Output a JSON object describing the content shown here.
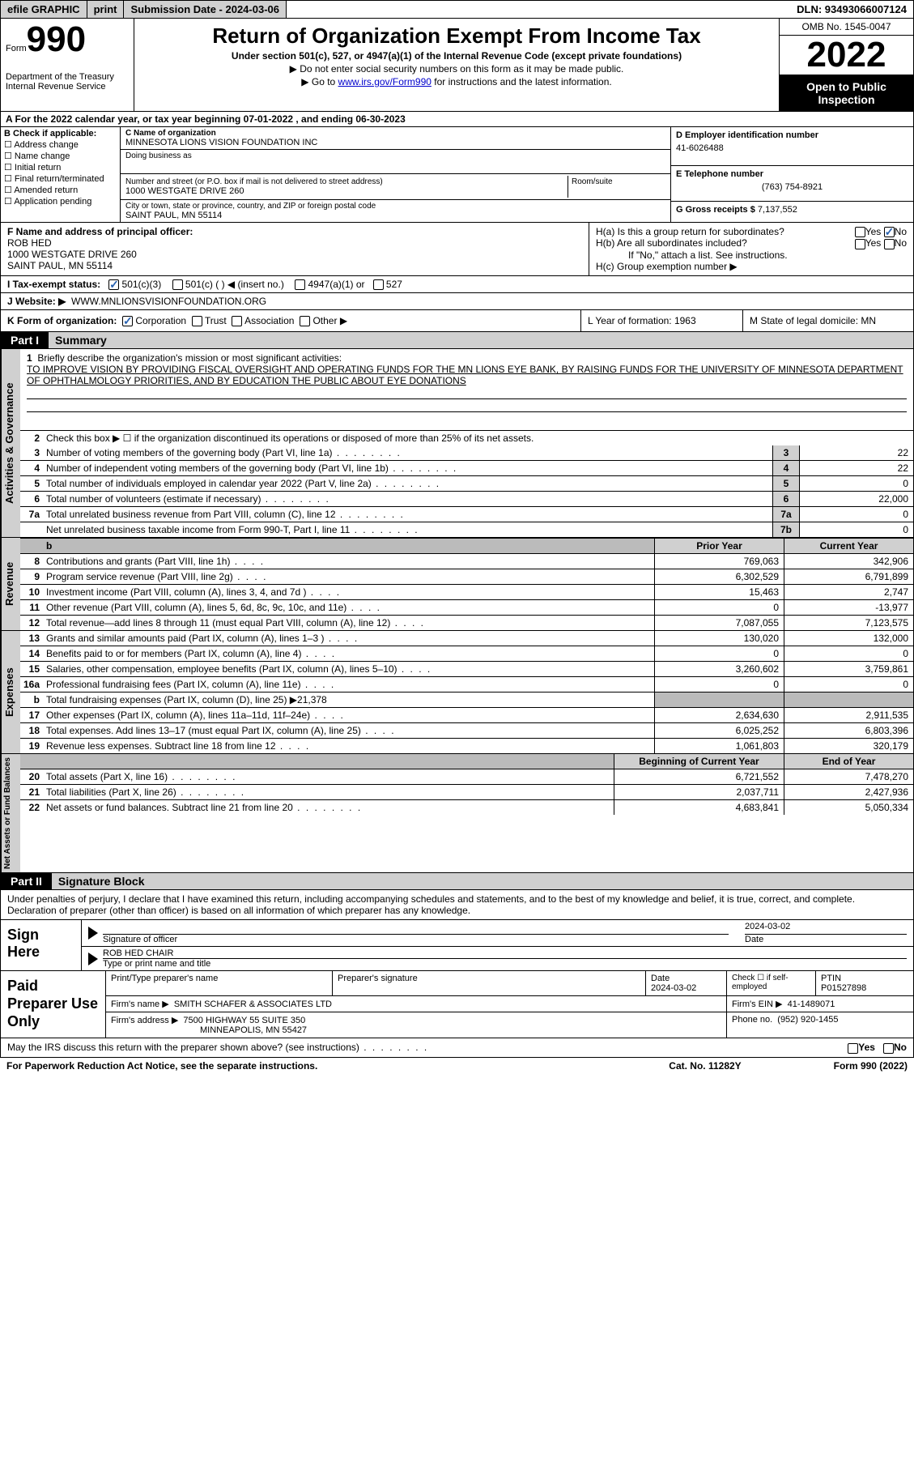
{
  "topbar": {
    "efile": "efile GRAPHIC",
    "print": "print",
    "submission": "Submission Date - 2024-03-06",
    "dln": "DLN: 93493066007124"
  },
  "header": {
    "form_prefix": "Form",
    "form_number": "990",
    "dept": "Department of the Treasury",
    "irs": "Internal Revenue Service",
    "title": "Return of Organization Exempt From Income Tax",
    "subtitle": "Under section 501(c), 527, or 4947(a)(1) of the Internal Revenue Code (except private foundations)",
    "note1": "▶ Do not enter social security numbers on this form as it may be made public.",
    "note2_pre": "▶ Go to ",
    "note2_link": "www.irs.gov/Form990",
    "note2_post": " for instructions and the latest information.",
    "omb": "OMB No. 1545-0047",
    "year": "2022",
    "open": "Open to Public Inspection"
  },
  "section_a": {
    "line": "A For the 2022 calendar year, or tax year beginning 07-01-2022    , and ending 06-30-2023"
  },
  "section_b": {
    "label": "B Check if applicable:",
    "opts": [
      "Address change",
      "Name change",
      "Initial return",
      "Final return/terminated",
      "Amended return",
      "Application pending"
    ],
    "c_label": "C Name of organization",
    "c_name": "MINNESOTA LIONS VISION FOUNDATION INC",
    "dba_label": "Doing business as",
    "addr_label": "Number and street (or P.O. box if mail is not delivered to street address)",
    "room_label": "Room/suite",
    "addr": "1000 WESTGATE DRIVE 260",
    "city_label": "City or town, state or province, country, and ZIP or foreign postal code",
    "city": "SAINT PAUL, MN  55114",
    "d_label": "D Employer identification number",
    "d_ein": "41-6026488",
    "e_label": "E Telephone number",
    "e_phone": "(763) 754-8921",
    "g_label": "G Gross receipts $",
    "g_amount": "7,137,552"
  },
  "section_fh": {
    "f_label": "F  Name and address of principal officer:",
    "f_name": "ROB HED",
    "f_addr1": "1000 WESTGATE DRIVE 260",
    "f_addr2": "SAINT PAUL, MN  55114",
    "ha": "H(a)  Is this a group return for subordinates?",
    "ha_yes": "Yes",
    "ha_no": "No",
    "hb": "H(b)  Are all subordinates included?",
    "hb_yes": "Yes",
    "hb_no": "No",
    "hb_note": "If \"No,\" attach a list. See instructions.",
    "hc": "H(c)  Group exemption number ▶"
  },
  "status": {
    "label": "I   Tax-exempt status:",
    "o1": "501(c)(3)",
    "o2": "501(c) (  ) ◀ (insert no.)",
    "o3": "4947(a)(1) or",
    "o4": "527"
  },
  "website": {
    "label": "J   Website: ▶",
    "url": "WWW.MNLIONSVISIONFOUNDATION.ORG"
  },
  "k_row": {
    "k_label": "K Form of organization:",
    "k1": "Corporation",
    "k2": "Trust",
    "k3": "Association",
    "k4": "Other ▶",
    "l": "L Year of formation: 1963",
    "m": "M State of legal domicile: MN"
  },
  "part1": {
    "num": "Part I",
    "title": "Summary"
  },
  "mission": {
    "label": "1  Briefly describe the organization's mission or most significant activities:",
    "text": "TO IMPROVE VISION BY PROVIDING FISCAL OVERSIGHT AND OPERATING FUNDS FOR THE MN LIONS EYE BANK, BY RAISING FUNDS FOR THE UNIVERSITY OF MINNESOTA DEPARTMENT OF OPHTHALMOLOGY PRIORITIES, AND BY EDUCATION THE PUBLIC ABOUT EYE DONATIONS"
  },
  "governance": {
    "label": "Activities & Governance",
    "l2": "Check this box ▶ ☐  if the organization discontinued its operations or disposed of more than 25% of its net assets.",
    "lines": [
      {
        "n": "3",
        "d": "Number of voting members of the governing body (Part VI, line 1a)",
        "an": "3",
        "v": "22"
      },
      {
        "n": "4",
        "d": "Number of independent voting members of the governing body (Part VI, line 1b)",
        "an": "4",
        "v": "22"
      },
      {
        "n": "5",
        "d": "Total number of individuals employed in calendar year 2022 (Part V, line 2a)",
        "an": "5",
        "v": "0"
      },
      {
        "n": "6",
        "d": "Total number of volunteers (estimate if necessary)",
        "an": "6",
        "v": "22,000"
      },
      {
        "n": "7a",
        "d": "Total unrelated business revenue from Part VIII, column (C), line 12",
        "an": "7a",
        "v": "0"
      },
      {
        "n": "",
        "d": "Net unrelated business taxable income from Form 990-T, Part I, line 11",
        "an": "7b",
        "v": "0"
      }
    ]
  },
  "revenue": {
    "label": "Revenue",
    "header_prior": "Prior Year",
    "header_current": "Current Year",
    "lines": [
      {
        "n": "8",
        "d": "Contributions and grants (Part VIII, line 1h)",
        "p": "769,063",
        "c": "342,906"
      },
      {
        "n": "9",
        "d": "Program service revenue (Part VIII, line 2g)",
        "p": "6,302,529",
        "c": "6,791,899"
      },
      {
        "n": "10",
        "d": "Investment income (Part VIII, column (A), lines 3, 4, and 7d )",
        "p": "15,463",
        "c": "2,747"
      },
      {
        "n": "11",
        "d": "Other revenue (Part VIII, column (A), lines 5, 6d, 8c, 9c, 10c, and 11e)",
        "p": "0",
        "c": "-13,977"
      },
      {
        "n": "12",
        "d": "Total revenue—add lines 8 through 11 (must equal Part VIII, column (A), line 12)",
        "p": "7,087,055",
        "c": "7,123,575"
      }
    ]
  },
  "expenses": {
    "label": "Expenses",
    "lines": [
      {
        "n": "13",
        "d": "Grants and similar amounts paid (Part IX, column (A), lines 1–3 )",
        "p": "130,020",
        "c": "132,000"
      },
      {
        "n": "14",
        "d": "Benefits paid to or for members (Part IX, column (A), line 4)",
        "p": "0",
        "c": "0"
      },
      {
        "n": "15",
        "d": "Salaries, other compensation, employee benefits (Part IX, column (A), lines 5–10)",
        "p": "3,260,602",
        "c": "3,759,861"
      },
      {
        "n": "16a",
        "d": "Professional fundraising fees (Part IX, column (A), line 11e)",
        "p": "0",
        "c": "0"
      },
      {
        "n": "b",
        "d": "Total fundraising expenses (Part IX, column (D), line 25) ▶21,378",
        "p": "",
        "c": "",
        "shaded": true
      },
      {
        "n": "17",
        "d": "Other expenses (Part IX, column (A), lines 11a–11d, 11f–24e)",
        "p": "2,634,630",
        "c": "2,911,535"
      },
      {
        "n": "18",
        "d": "Total expenses. Add lines 13–17 (must equal Part IX, column (A), line 25)",
        "p": "6,025,252",
        "c": "6,803,396"
      },
      {
        "n": "19",
        "d": "Revenue less expenses. Subtract line 18 from line 12",
        "p": "1,061,803",
        "c": "320,179"
      }
    ]
  },
  "netassets": {
    "label": "Net Assets or Fund Balances",
    "header_prior": "Beginning of Current Year",
    "header_current": "End of Year",
    "lines": [
      {
        "n": "20",
        "d": "Total assets (Part X, line 16)",
        "p": "6,721,552",
        "c": "7,478,270"
      },
      {
        "n": "21",
        "d": "Total liabilities (Part X, line 26)",
        "p": "2,037,711",
        "c": "2,427,936"
      },
      {
        "n": "22",
        "d": "Net assets or fund balances. Subtract line 21 from line 20",
        "p": "4,683,841",
        "c": "5,050,334"
      }
    ]
  },
  "part2": {
    "num": "Part II",
    "title": "Signature Block",
    "text": "Under penalties of perjury, I declare that I have examined this return, including accompanying schedules and statements, and to the best of my knowledge and belief, it is true, correct, and complete. Declaration of preparer (other than officer) is based on all information of which preparer has any knowledge."
  },
  "sign": {
    "label": "Sign Here",
    "sig_label": "Signature of officer",
    "date": "2024-03-02",
    "date_label": "Date",
    "name": "ROB HED CHAIR",
    "name_label": "Type or print name and title"
  },
  "preparer": {
    "label": "Paid Preparer Use Only",
    "print_label": "Print/Type preparer's name",
    "sig_label": "Preparer's signature",
    "date_label": "Date",
    "date": "2024-03-02",
    "check_label": "Check ☐ if self-employed",
    "ptin_label": "PTIN",
    "ptin": "P01527898",
    "firm_name_label": "Firm's name    ▶",
    "firm_name": "SMITH SCHAFER & ASSOCIATES LTD",
    "firm_ein_label": "Firm's EIN ▶",
    "firm_ein": "41-1489071",
    "firm_addr_label": "Firm's address ▶",
    "firm_addr1": "7500 HIGHWAY 55 SUITE 350",
    "firm_addr2": "MINNEAPOLIS, MN  55427",
    "phone_label": "Phone no.",
    "phone": "(952) 920-1455"
  },
  "footer": {
    "discuss": "May the IRS discuss this return with the preparer shown above? (see instructions)",
    "yes": "Yes",
    "no": "No",
    "paperwork": "For Paperwork Reduction Act Notice, see the separate instructions.",
    "cat": "Cat. No. 11282Y",
    "form": "Form 990 (2022)"
  }
}
